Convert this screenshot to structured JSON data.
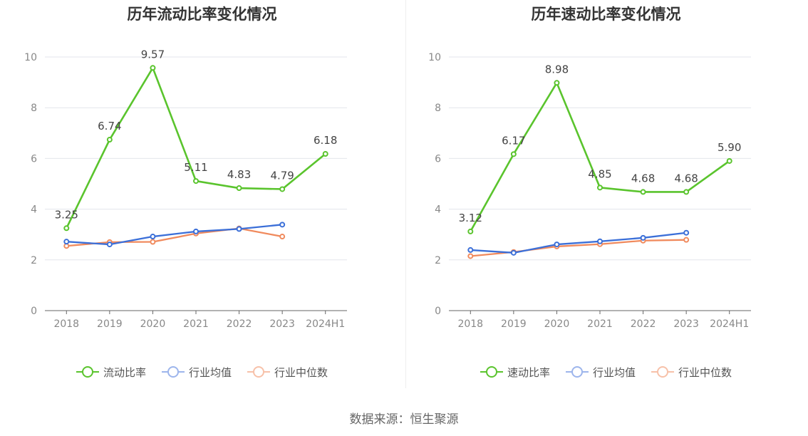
{
  "source_label": "数据来源：恒生聚源",
  "chart_data": [
    {
      "type": "line",
      "title": "历年流动比率变化情况",
      "categories": [
        "2018",
        "2019",
        "2020",
        "2021",
        "2022",
        "2023",
        "2024H1"
      ],
      "ylim": [
        0,
        10
      ],
      "yticks": [
        0,
        2,
        4,
        6,
        8,
        10
      ],
      "grid": true,
      "legend_position": "bottom",
      "series": [
        {
          "name": "流动比率",
          "color": "#5ac42d",
          "labeled": true,
          "values": [
            3.25,
            6.74,
            9.57,
            5.11,
            4.83,
            4.79,
            6.18
          ],
          "labels": [
            "3.25",
            "6.74",
            "9.57",
            "5.11",
            "4.83",
            "4.79",
            "6.18"
          ]
        },
        {
          "name": "行业均值",
          "color": "#3b6fd8",
          "labeled": false,
          "values": [
            2.72,
            2.61,
            2.92,
            3.12,
            3.22,
            3.39,
            null
          ]
        },
        {
          "name": "行业中位数",
          "color": "#f08a5d",
          "labeled": false,
          "values": [
            2.55,
            2.7,
            2.71,
            3.04,
            3.24,
            2.92,
            null
          ]
        }
      ]
    },
    {
      "type": "line",
      "title": "历年速动比率变化情况",
      "categories": [
        "2018",
        "2019",
        "2020",
        "2021",
        "2022",
        "2023",
        "2024H1"
      ],
      "ylim": [
        0,
        10
      ],
      "yticks": [
        0,
        2,
        4,
        6,
        8,
        10
      ],
      "grid": true,
      "legend_position": "bottom",
      "series": [
        {
          "name": "速动比率",
          "color": "#5ac42d",
          "labeled": true,
          "values": [
            3.12,
            6.17,
            8.98,
            4.85,
            4.68,
            4.68,
            5.9
          ],
          "labels": [
            "3.12",
            "6.17",
            "8.98",
            "4.85",
            "4.68",
            "4.68",
            "5.90"
          ]
        },
        {
          "name": "行业均值",
          "color": "#3b6fd8",
          "labeled": false,
          "values": [
            2.39,
            2.28,
            2.61,
            2.73,
            2.87,
            3.07,
            null
          ]
        },
        {
          "name": "行业中位数",
          "color": "#f08a5d",
          "labeled": false,
          "values": [
            2.15,
            2.31,
            2.53,
            2.62,
            2.76,
            2.79,
            null
          ]
        }
      ]
    }
  ]
}
